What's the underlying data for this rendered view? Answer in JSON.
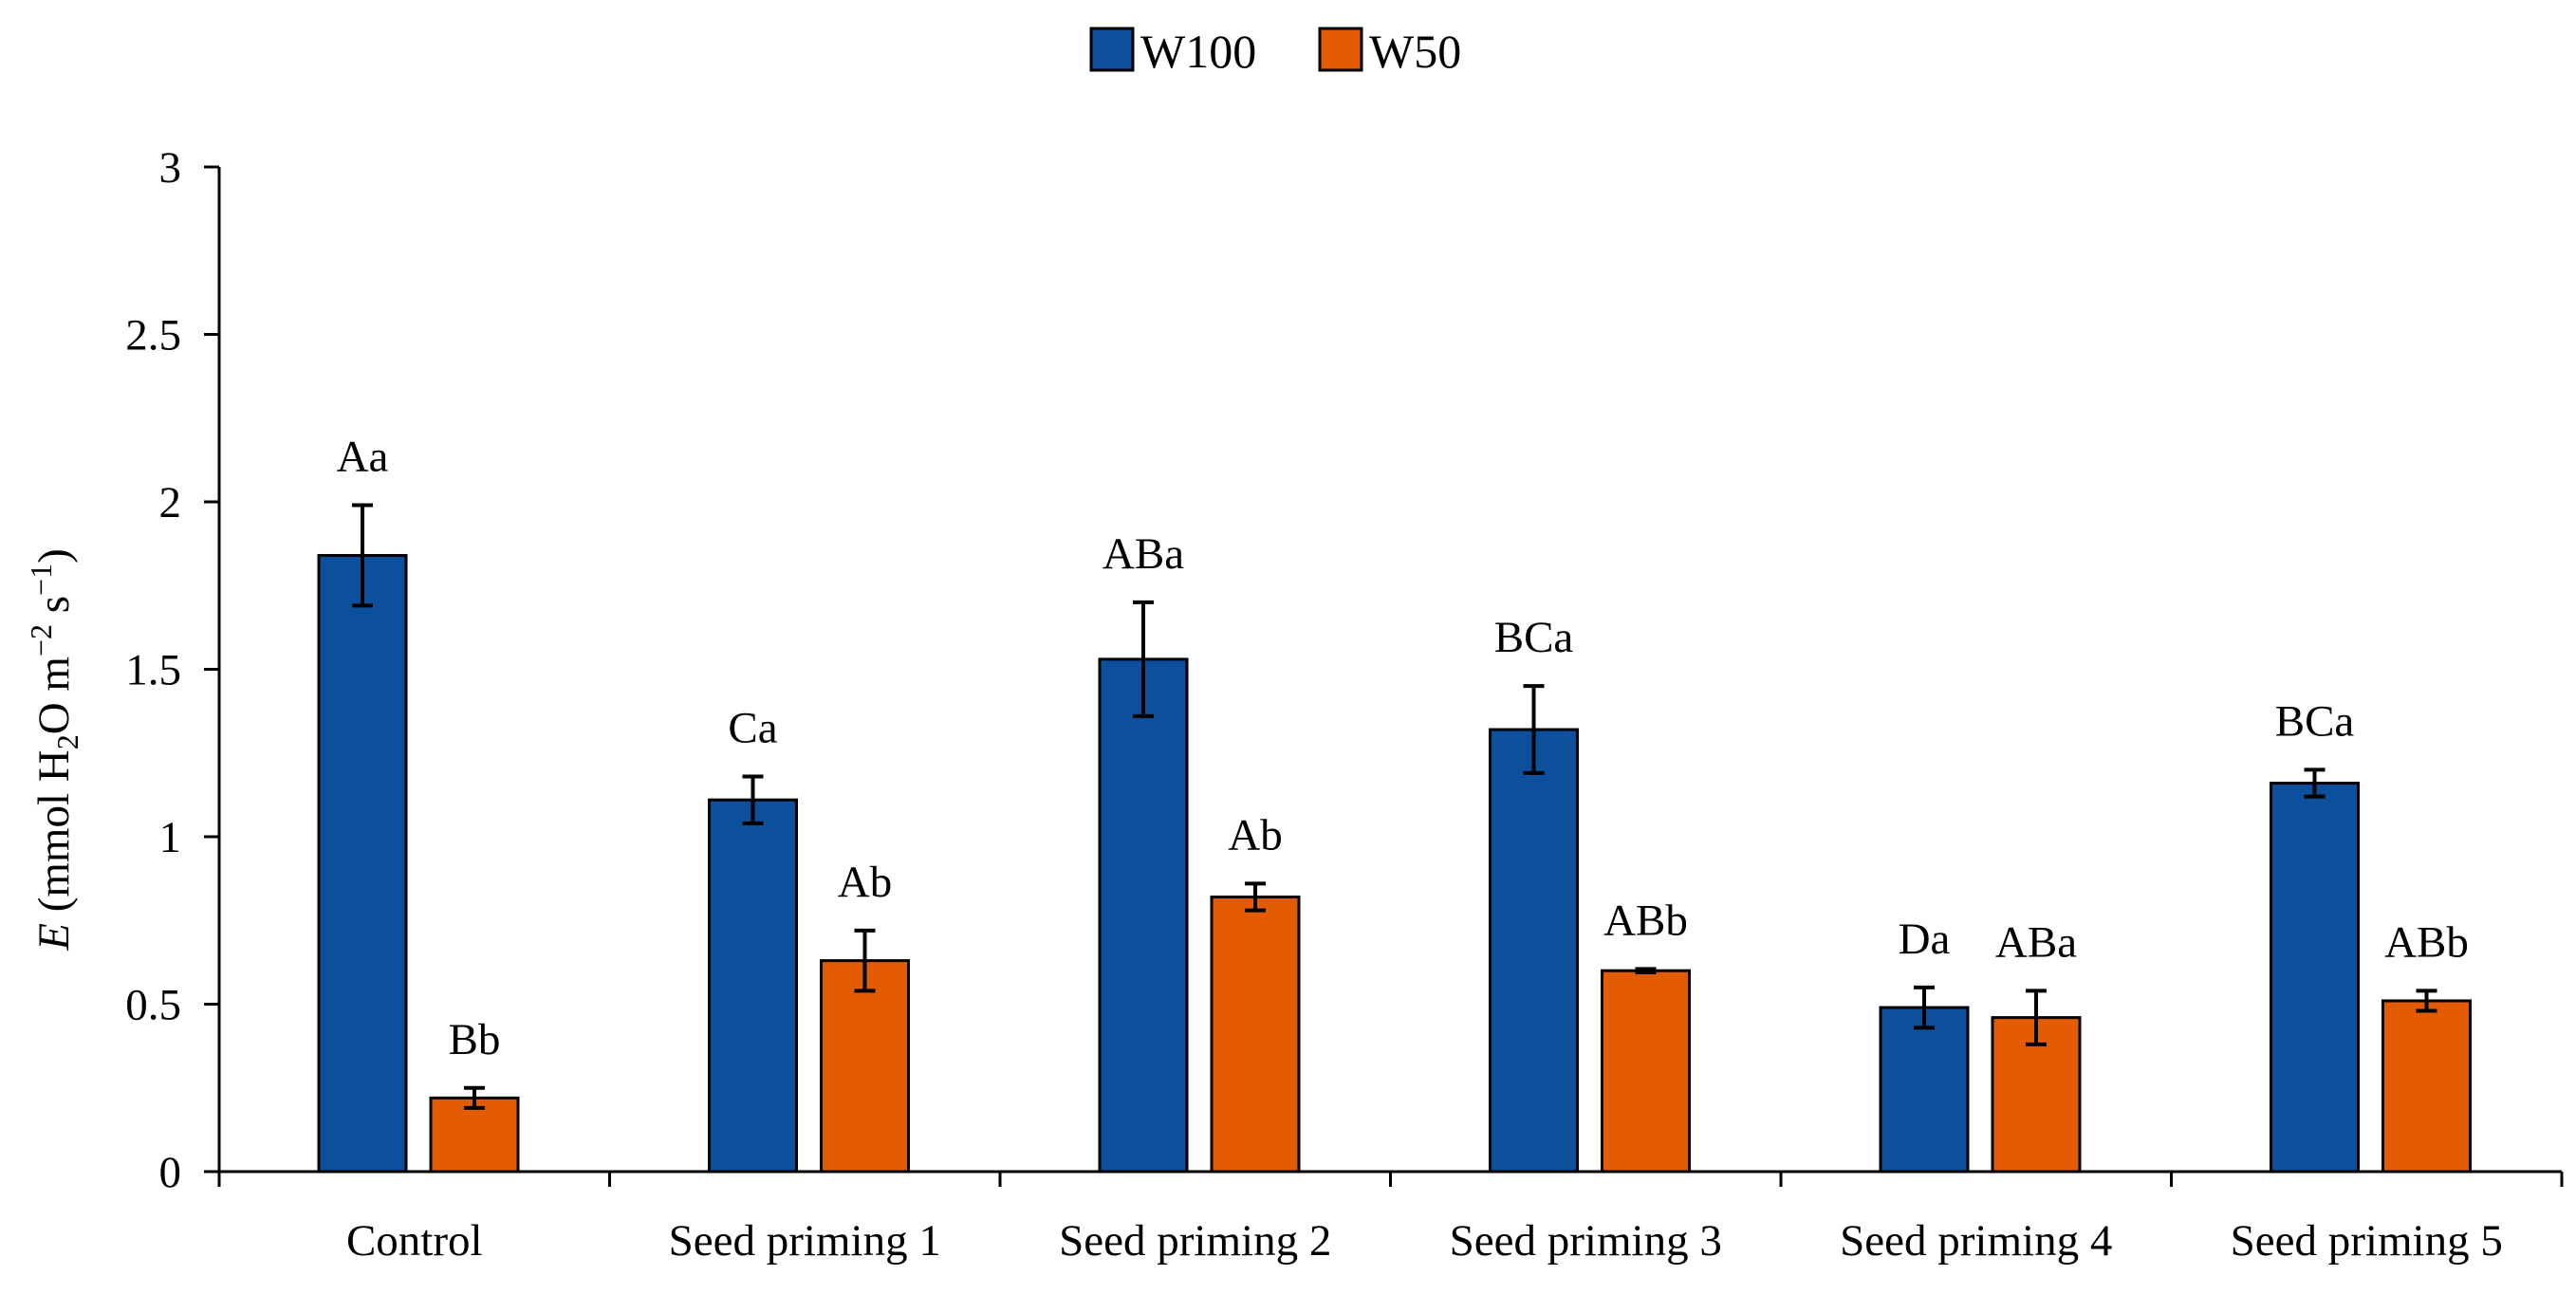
{
  "chart_data": {
    "type": "bar",
    "title": "",
    "xlabel": "",
    "ylabel": {
      "variable": "E",
      "prefix": " (mmol H",
      "sub": "2",
      "middle": "O m",
      "sup1": "−2",
      "middle2": " s",
      "sup2": "−1",
      "suffix": ")"
    },
    "ylim": [
      0,
      3
    ],
    "yticks": [
      "0",
      "0.5",
      "1",
      "1.5",
      "2",
      "2.5",
      "3"
    ],
    "ytick_values": [
      0,
      0.5,
      1,
      1.5,
      2,
      2.5,
      3
    ],
    "grid": false,
    "legend_position": "top-center",
    "categories": [
      "Control",
      "Seed priming 1",
      "Seed priming 2",
      "Seed priming 3",
      "Seed priming 4",
      "Seed priming 5"
    ],
    "series": [
      {
        "name": "W100",
        "color": "#0c4f9c",
        "values": [
          1.84,
          1.11,
          1.53,
          1.32,
          0.49,
          1.16
        ],
        "errors": [
          0.15,
          0.07,
          0.17,
          0.13,
          0.06,
          0.04
        ],
        "labels": [
          "Aa",
          "Ca",
          "ABa",
          "BCa",
          "Da",
          "BCa"
        ]
      },
      {
        "name": "W50",
        "color": "#e35b03",
        "values": [
          0.22,
          0.63,
          0.82,
          0.6,
          0.46,
          0.51
        ],
        "errors": [
          0.03,
          0.09,
          0.04,
          0.005,
          0.08,
          0.03
        ],
        "labels": [
          "Bb",
          "Ab",
          "Ab",
          "ABb",
          "ABa",
          "ABb"
        ]
      }
    ]
  }
}
